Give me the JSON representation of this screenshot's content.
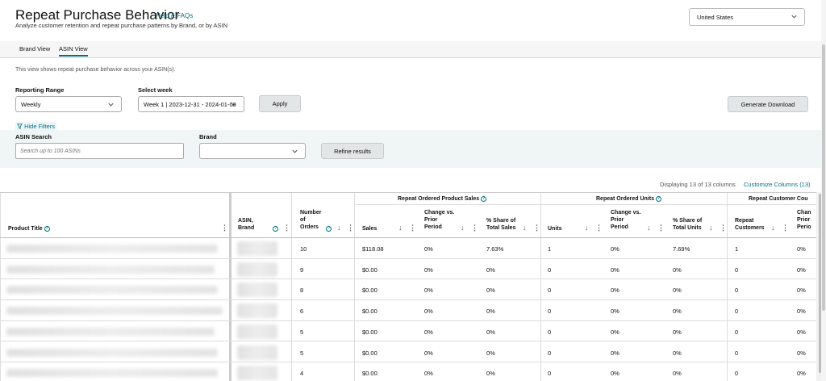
{
  "header": {
    "title": "Repeat Purchase Behavior",
    "help_link": "Help & FAQs",
    "subtitle": "Analyze customer retention and repeat purchase patterns by Brand, or by ASIN",
    "country": "United States"
  },
  "tabs": [
    {
      "label": "Brand View",
      "active": false
    },
    {
      "label": "ASIN View",
      "active": true
    }
  ],
  "description": "This view shows repeat purchase behavior across your ASIN(s).",
  "controls": {
    "reporting_range_label": "Reporting Range",
    "reporting_range_value": "Weekly",
    "select_week_label": "Select week",
    "select_week_value": "Week 1 | 2023-12-31 - 2024-01-06",
    "apply_label": "Apply",
    "generate_download_label": "Generate Download",
    "hide_filters_label": "Hide Filters"
  },
  "filters": {
    "asin_search_label": "ASIN Search",
    "asin_search_placeholder": "Search up to 100 ASINs",
    "brand_label": "Brand",
    "brand_value": "",
    "refine_label": "Refine results"
  },
  "table_meta": {
    "displaying": "Displaying 13 of 13 columns",
    "customize": "Customize Columns (13)"
  },
  "table": {
    "group_headers": {
      "sales": "Repeat Ordered Product Sales",
      "units": "Repeat Ordered Units",
      "customers": "Repeat Customer Cou"
    },
    "columns": {
      "product_title": "Product Title",
      "asin_brand_1": "ASIN,",
      "asin_brand_2": "Brand",
      "orders_1": "Number",
      "orders_2": "of",
      "orders_3": "Orders",
      "sales": "Sales",
      "sales_change_1": "Change vs.",
      "sales_change_2": "Prior",
      "sales_change_3": "Period",
      "sales_share_1": "% Share of",
      "sales_share_2": "Total Sales",
      "units": "Units",
      "units_change_1": "Change vs.",
      "units_change_2": "Prior",
      "units_change_3": "Period",
      "units_share_1": "% Share of",
      "units_share_2": "Total Units",
      "repeat_customers_1": "Repeat",
      "repeat_customers_2": "Customers",
      "cust_change_1": "Chan",
      "cust_change_2": "Prior",
      "cust_change_3": "Perio"
    },
    "rows": [
      {
        "orders": "10",
        "sales": "$118.08",
        "sales_change": "0%",
        "sales_share": "7.63%",
        "units": "1",
        "units_change": "0%",
        "units_share": "7.69%",
        "customers": "1",
        "cust_change": "0%"
      },
      {
        "orders": "9",
        "sales": "$0.00",
        "sales_change": "0%",
        "sales_share": "0%",
        "units": "0",
        "units_change": "0%",
        "units_share": "0%",
        "customers": "0",
        "cust_change": "0%"
      },
      {
        "orders": "8",
        "sales": "$0.00",
        "sales_change": "0%",
        "sales_share": "0%",
        "units": "0",
        "units_change": "0%",
        "units_share": "0%",
        "customers": "0",
        "cust_change": "0%"
      },
      {
        "orders": "6",
        "sales": "$0.00",
        "sales_change": "0%",
        "sales_share": "0%",
        "units": "0",
        "units_change": "0%",
        "units_share": "0%",
        "customers": "0",
        "cust_change": "0%"
      },
      {
        "orders": "5",
        "sales": "$0.00",
        "sales_change": "0%",
        "sales_share": "0%",
        "units": "0",
        "units_change": "0%",
        "units_share": "0%",
        "customers": "0",
        "cust_change": "0%"
      },
      {
        "orders": "5",
        "sales": "$0.00",
        "sales_change": "0%",
        "sales_share": "0%",
        "units": "0",
        "units_change": "0%",
        "units_share": "0%",
        "customers": "0",
        "cust_change": "0%"
      },
      {
        "orders": "4",
        "sales": "$0.00",
        "sales_change": "0%",
        "sales_share": "0%",
        "units": "0",
        "units_change": "0%",
        "units_share": "0%",
        "customers": "0",
        "cust_change": "0%"
      }
    ]
  }
}
